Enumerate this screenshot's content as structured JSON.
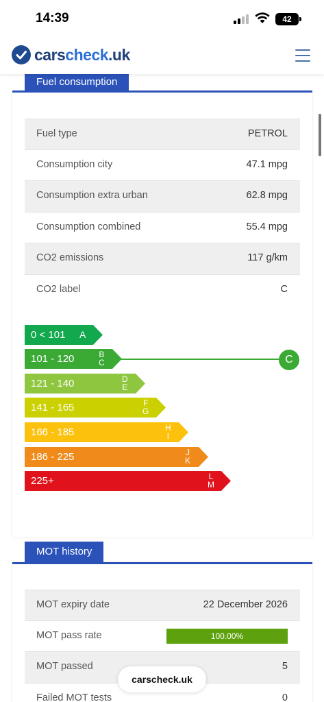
{
  "status": {
    "time": "14:39",
    "battery": "42"
  },
  "header": {
    "logo_part1": "cars",
    "logo_part2": "check",
    "logo_part3": ".uk"
  },
  "fuel": {
    "tab": "Fuel consumption",
    "rows": [
      {
        "label": "Fuel type",
        "value": "PETROL"
      },
      {
        "label": "Consumption city",
        "value": "47.1 mpg"
      },
      {
        "label": "Consumption extra urban",
        "value": "62.8 mpg"
      },
      {
        "label": "Consumption combined",
        "value": "55.4 mpg"
      },
      {
        "label": "CO2 emissions",
        "value": "117 g/km"
      },
      {
        "label": "CO2 label",
        "value": "C"
      }
    ]
  },
  "bands": [
    {
      "range": "0 < 101",
      "letters": "A",
      "color": "#11a84e"
    },
    {
      "range": "101 - 120",
      "letters": "B\nC",
      "color": "#3aaa35"
    },
    {
      "range": "121 - 140",
      "letters": "D\nE",
      "color": "#8ec63f"
    },
    {
      "range": "141 - 165",
      "letters": "F\nG",
      "color": "#cbd000"
    },
    {
      "range": "166 - 185",
      "letters": "H\nI",
      "color": "#fcc10c"
    },
    {
      "range": "186 - 225",
      "letters": "J\nK",
      "color": "#f08a1a"
    },
    {
      "range": "225+",
      "letters": "L\nM",
      "color": "#e0121b"
    }
  ],
  "indicator": {
    "label": "C"
  },
  "mot": {
    "tab": "MOT history",
    "rows": [
      {
        "label": "MOT expiry date",
        "value": "22 December 2026"
      },
      {
        "label": "MOT pass rate",
        "value": "",
        "progress_text": "100.00%",
        "progress": 1.0
      },
      {
        "label": "MOT passed",
        "value": "5"
      },
      {
        "label": "Failed MOT tests",
        "value": "0"
      }
    ]
  },
  "footer_pill": "carscheck.uk"
}
